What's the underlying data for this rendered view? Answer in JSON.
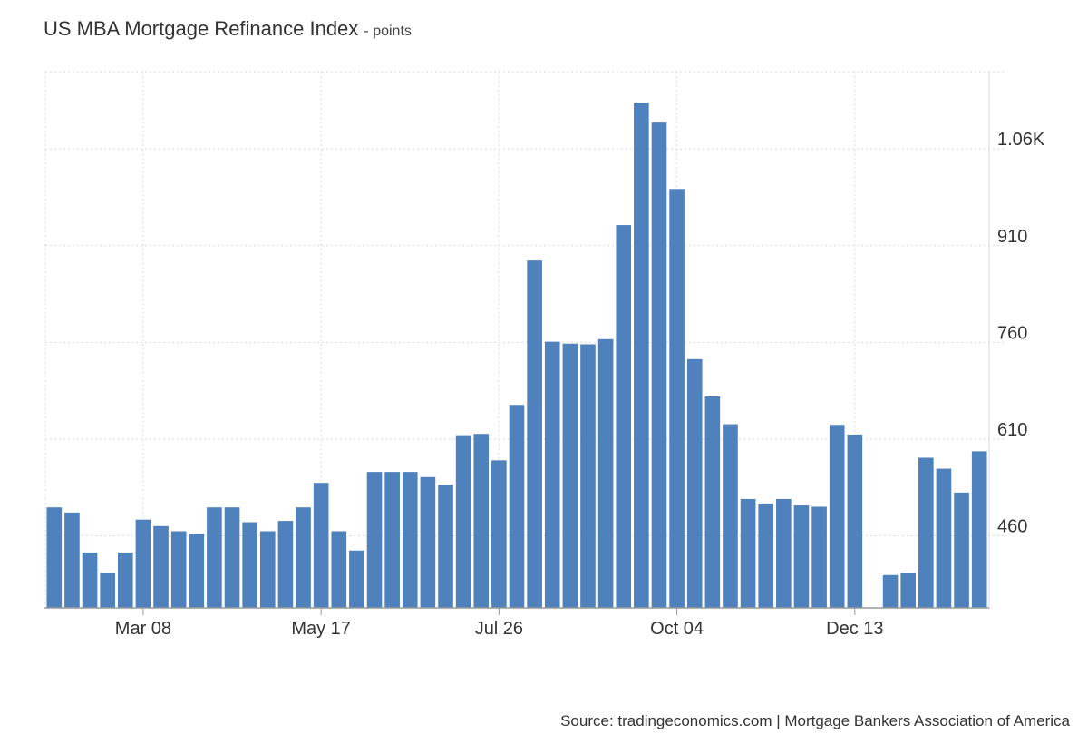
{
  "title": "US MBA Mortgage Refinance Index",
  "unit": "- points",
  "source": "Source: tradingeconomics.com | Mortgage Bankers Association of America",
  "colors": {
    "bar": "#4f81bd",
    "grid": "#d9d9d9",
    "axis": "#333333"
  },
  "chart_data": {
    "type": "bar",
    "title": "US MBA Mortgage Refinance Index",
    "xlabel": "",
    "ylabel": "",
    "ylim": [
      348,
      1180
    ],
    "yticks": [
      460,
      610,
      760,
      910,
      1060
    ],
    "ytick_labels": [
      "460",
      "610",
      "760",
      "910",
      "1.06K"
    ],
    "y_axis_side": "right",
    "grid": true,
    "xtick_labels": [
      {
        "index": 5,
        "label": "Mar 08"
      },
      {
        "index": 15,
        "label": "May 17"
      },
      {
        "index": 25,
        "label": "Jul 26"
      },
      {
        "index": 35,
        "label": "Oct 04"
      },
      {
        "index": 45,
        "label": "Dec 13"
      }
    ],
    "values": [
      504,
      496,
      434,
      402,
      434,
      485,
      475,
      467,
      463,
      504,
      504,
      481,
      467,
      483,
      504,
      542,
      467,
      437,
      559,
      559,
      559,
      551,
      539,
      616,
      618,
      577,
      663,
      887,
      761,
      758,
      757,
      765,
      942,
      1132,
      1101,
      998,
      734,
      676,
      633,
      517,
      510,
      517,
      507,
      505,
      632,
      617,
      null,
      399,
      402,
      581,
      564,
      527,
      591
    ]
  }
}
